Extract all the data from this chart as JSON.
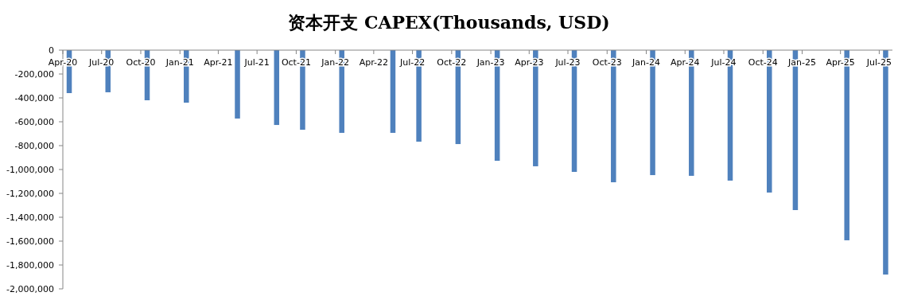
{
  "chart_data": {
    "type": "bar",
    "title": "资本开支 CAPEX(Thousands, USD)",
    "color": "#4f81bd",
    "x": [
      "2020-04-16",
      "2020-07-16",
      "2020-10-16",
      "2021-01-16",
      "2021-05-16",
      "2021-08-16",
      "2021-10-16",
      "2022-01-16",
      "2022-05-16",
      "2022-07-16",
      "2022-10-16",
      "2023-01-16",
      "2023-04-16",
      "2023-07-16",
      "2023-10-16",
      "2024-01-16",
      "2024-04-16",
      "2024-07-16",
      "2024-10-16",
      "2024-12-16",
      "2025-04-16",
      "2025-07-16"
    ],
    "values": [
      -360000,
      -353000,
      -420000,
      -440000,
      -573000,
      -627000,
      -667000,
      -693000,
      -693000,
      -767000,
      -787000,
      -927000,
      -973000,
      -1020000,
      -1107000,
      -1047000,
      -1053000,
      -1093000,
      -1193000,
      -1340000,
      -1593000,
      -1880000
    ],
    "xlim": [
      "2020-04",
      "2025-08"
    ],
    "xticks": [
      {
        "value": "2020-04",
        "label": "Apr-20"
      },
      {
        "value": "2020-07",
        "label": "Jul-20"
      },
      {
        "value": "2020-10",
        "label": "Oct-20"
      },
      {
        "value": "2021-01",
        "label": "Jan-21"
      },
      {
        "value": "2021-04",
        "label": "Apr-21"
      },
      {
        "value": "2021-07",
        "label": "Jul-21"
      },
      {
        "value": "2021-10",
        "label": "Oct-21"
      },
      {
        "value": "2022-01",
        "label": "Jan-22"
      },
      {
        "value": "2022-04",
        "label": "Apr-22"
      },
      {
        "value": "2022-07",
        "label": "Jul-22"
      },
      {
        "value": "2022-10",
        "label": "Oct-22"
      },
      {
        "value": "2023-01",
        "label": "Jan-23"
      },
      {
        "value": "2023-04",
        "label": "Apr-23"
      },
      {
        "value": "2023-07",
        "label": "Jul-23"
      },
      {
        "value": "2023-10",
        "label": "Oct-23"
      },
      {
        "value": "2024-01",
        "label": "Jan-24"
      },
      {
        "value": "2024-04",
        "label": "Apr-24"
      },
      {
        "value": "2024-07",
        "label": "Jul-24"
      },
      {
        "value": "2024-10",
        "label": "Oct-24"
      },
      {
        "value": "2025-01",
        "label": "Jan-25"
      },
      {
        "value": "2025-04",
        "label": "Apr-25"
      },
      {
        "value": "2025-07",
        "label": "Jul-25"
      }
    ],
    "ylim": [
      -2000000,
      0
    ],
    "yticks": [
      {
        "value": -2000000,
        "label": "-2,000,000"
      },
      {
        "value": -1800000,
        "label": "-1,800,000"
      },
      {
        "value": -1600000,
        "label": "-1,600,000"
      },
      {
        "value": -1400000,
        "label": "-1,400,000"
      },
      {
        "value": -1200000,
        "label": "-1,200,000"
      },
      {
        "value": -1000000,
        "label": "-1,000,000"
      },
      {
        "value": -800000,
        "label": "-800,000"
      },
      {
        "value": -600000,
        "label": "-600,000"
      },
      {
        "value": -400000,
        "label": "-400,000"
      },
      {
        "value": -200000,
        "label": "-200,000"
      },
      0
    ]
  }
}
